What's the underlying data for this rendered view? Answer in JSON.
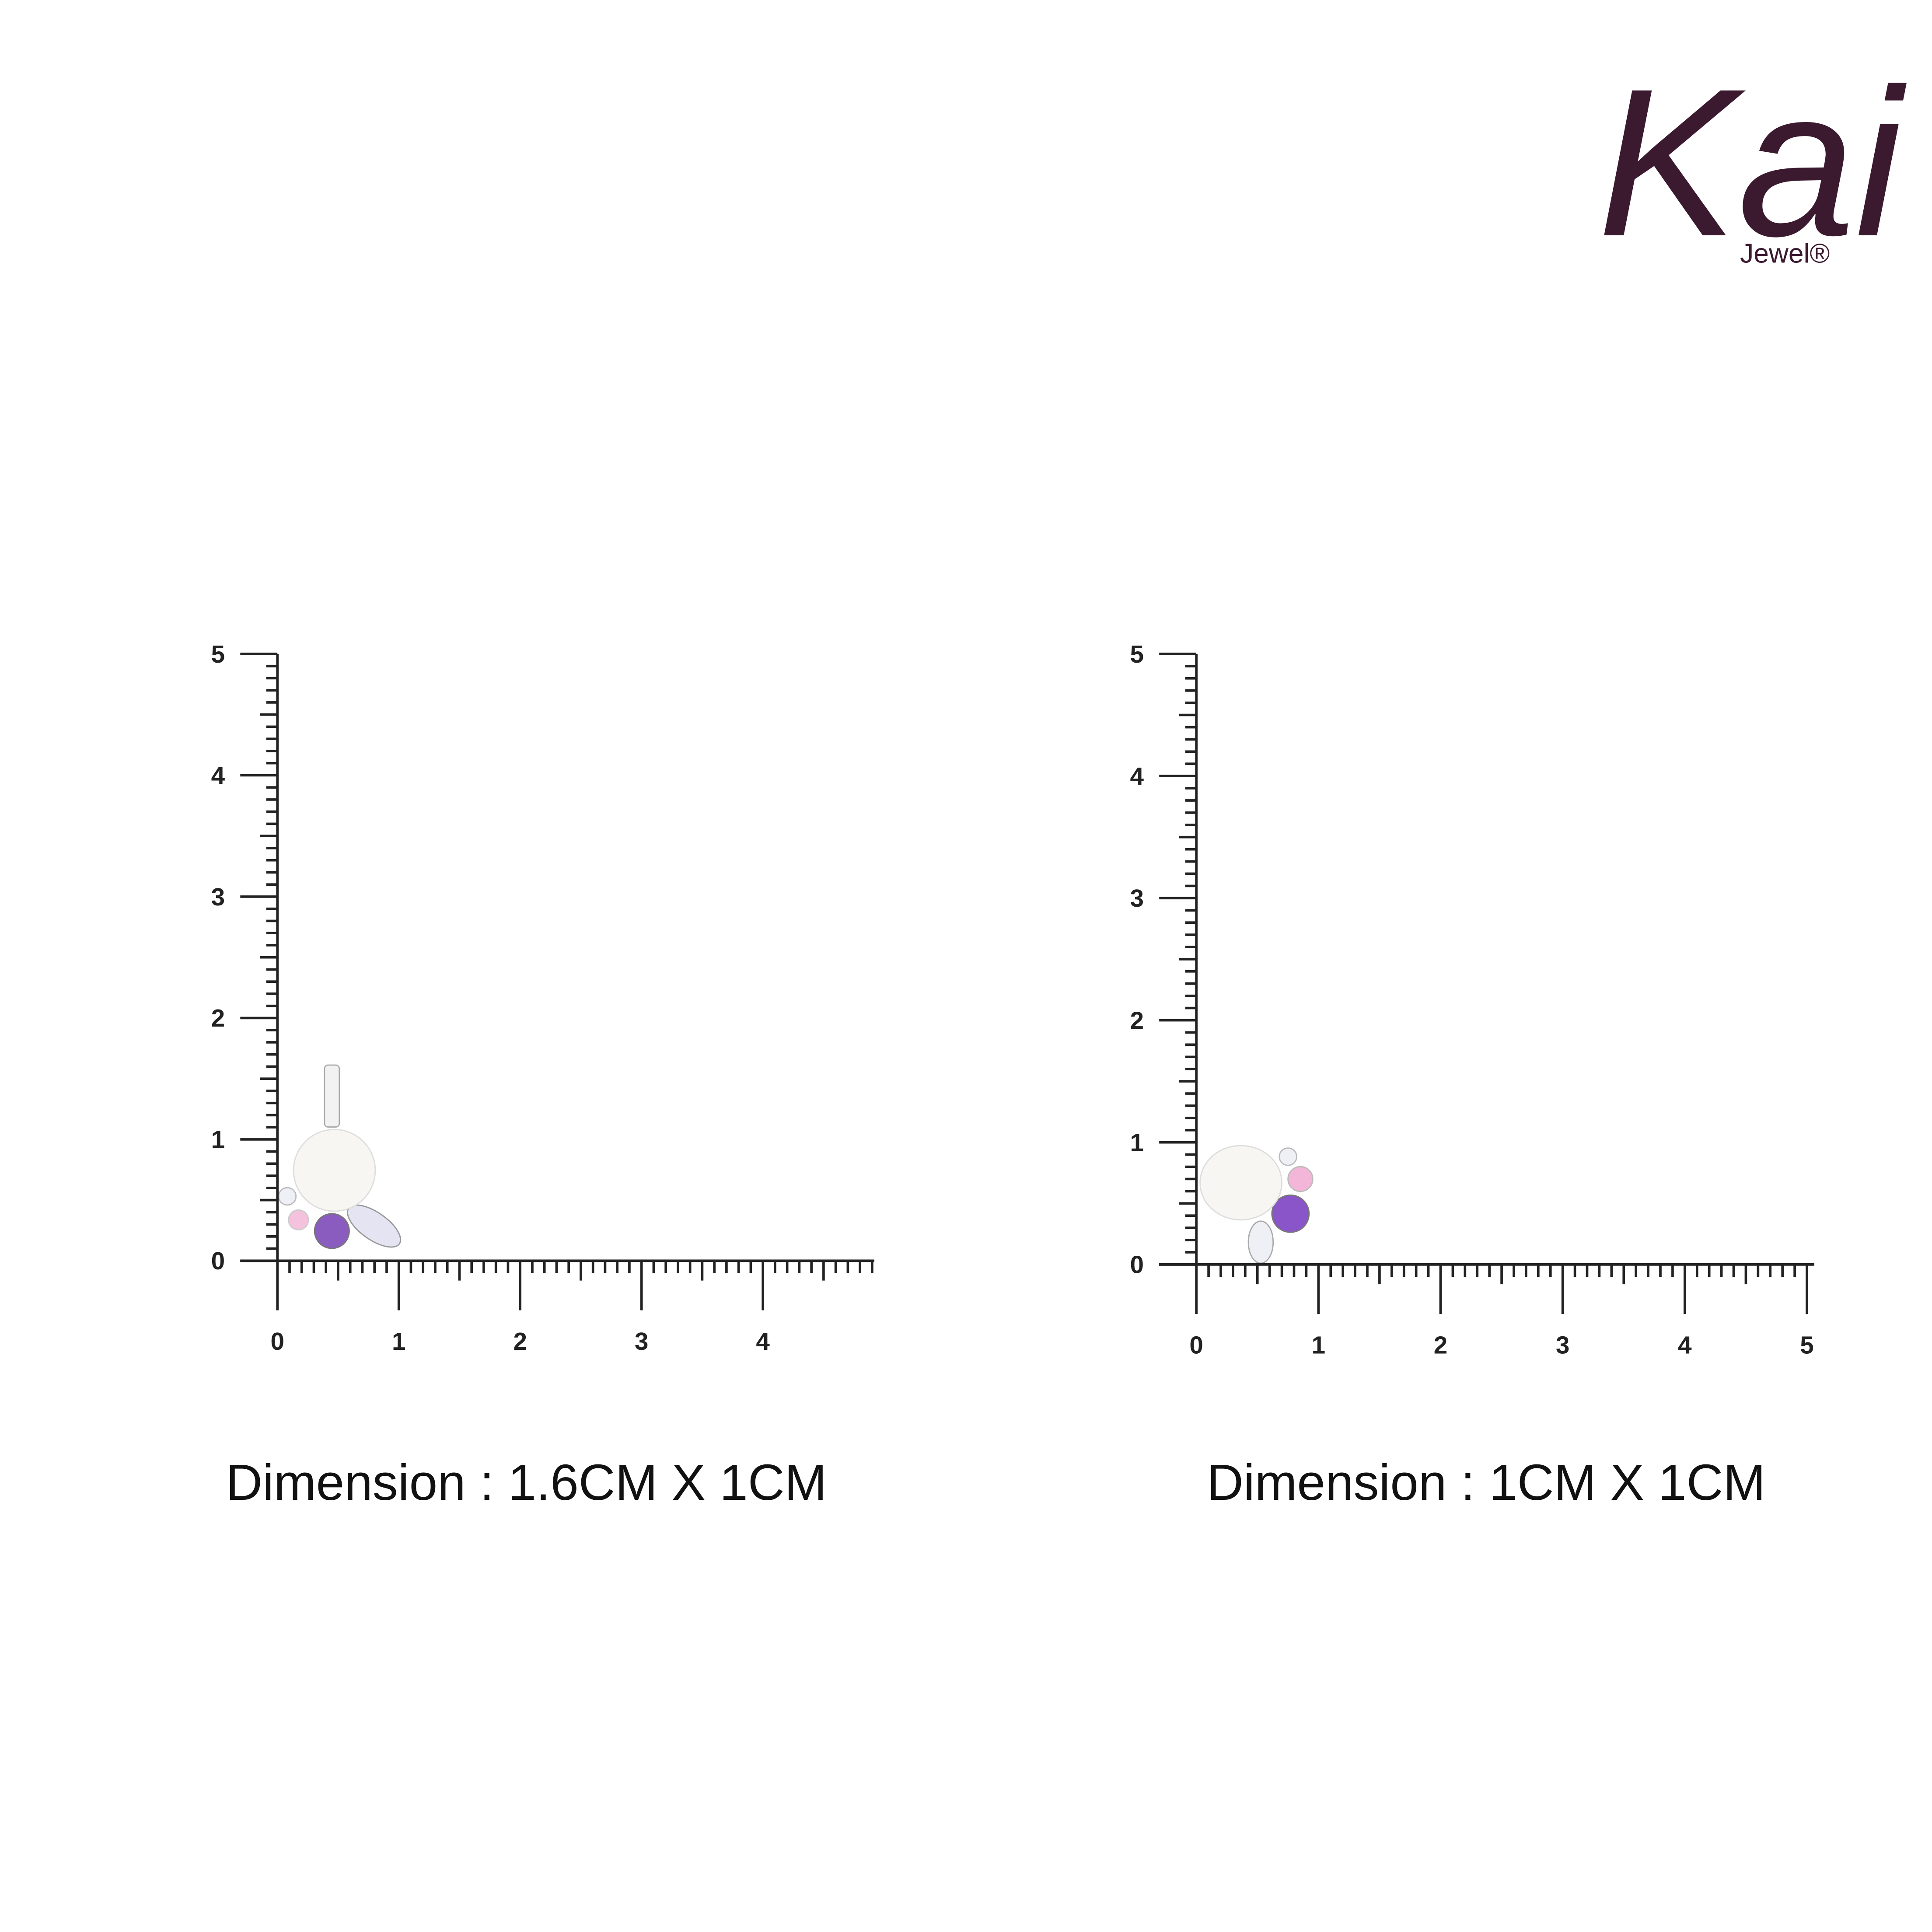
{
  "logo": {
    "name": "Kai",
    "sub": "Jewel®"
  },
  "panels": [
    {
      "y_labels": [
        "0",
        "1",
        "2",
        "3",
        "4",
        "5"
      ],
      "x_labels": [
        "0",
        "1",
        "2",
        "3",
        "4"
      ],
      "caption": "Dimension : 1.6CM X 1CM"
    },
    {
      "y_labels": [
        "0",
        "1",
        "2",
        "3",
        "4",
        "5"
      ],
      "x_labels": [
        "0",
        "1",
        "2",
        "3",
        "4",
        "5"
      ],
      "caption": "Dimension : 1CM X 1CM"
    }
  ]
}
